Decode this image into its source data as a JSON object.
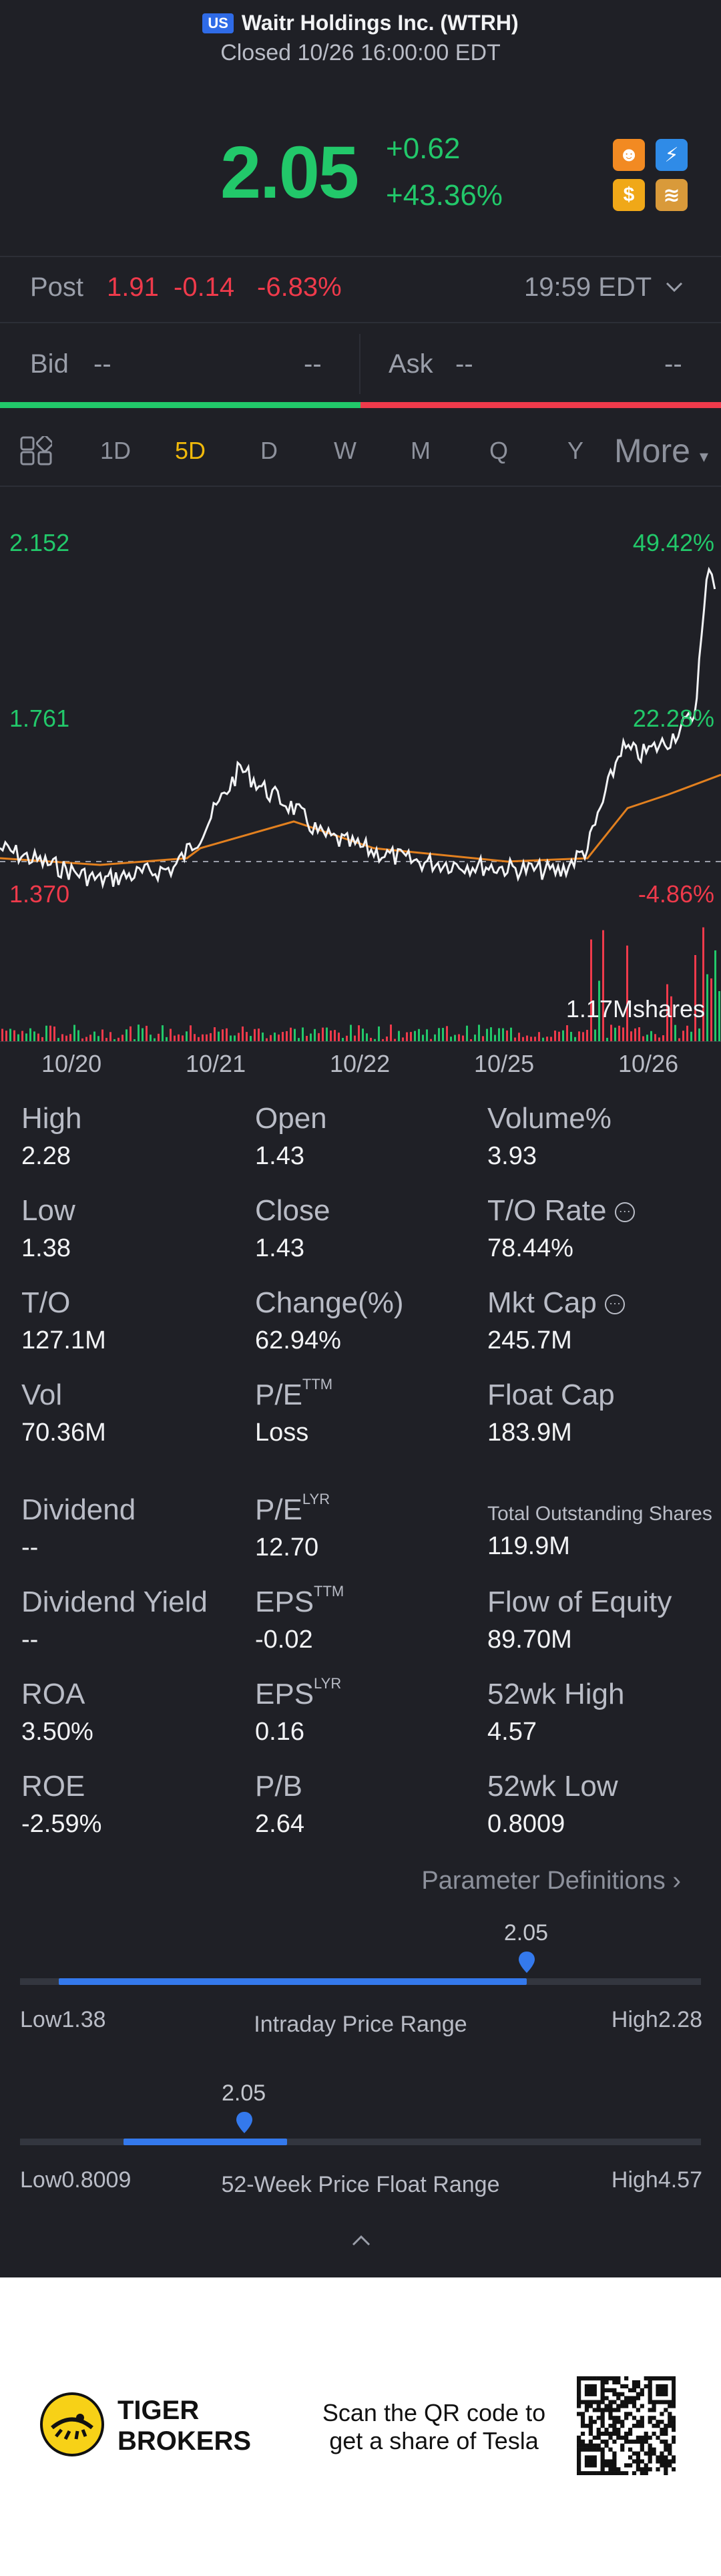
{
  "header": {
    "market_badge": "US",
    "title": "Waitr Holdings Inc. (WTRH)",
    "status": "Closed 10/26 16:00:00 EDT"
  },
  "quote": {
    "price": "2.05",
    "change": "+0.62",
    "change_pct": "+43.36%"
  },
  "post_market": {
    "label": "Post",
    "price": "1.91",
    "change": "-0.14",
    "change_pct": "-6.83%",
    "time": "19:59 EDT"
  },
  "bid": {
    "label": "Bid",
    "price": "--",
    "size": "--"
  },
  "ask": {
    "label": "Ask",
    "price": "--",
    "size": "--"
  },
  "tabs": [
    "1D",
    "5D",
    "D",
    "W",
    "M",
    "Q",
    "Y"
  ],
  "active_tab": "5D",
  "more_label": "More",
  "chart": {
    "y_left": [
      "2.152",
      "1.761",
      "1.370"
    ],
    "y_right": [
      "49.42%",
      "22.28%",
      "-4.86%"
    ],
    "volume_label": "1.17Mshares",
    "dates": [
      "10/20",
      "10/21",
      "10/22",
      "10/25",
      "10/26"
    ]
  },
  "stats": {
    "high": {
      "label": "High",
      "value": "2.28"
    },
    "open": {
      "label": "Open",
      "value": "1.43"
    },
    "volume_pct": {
      "label": "Volume%",
      "value": "3.93"
    },
    "low": {
      "label": "Low",
      "value": "1.38"
    },
    "close": {
      "label": "Close",
      "value": "1.43"
    },
    "to_rate": {
      "label": "T/O Rate",
      "value": "78.44%"
    },
    "to": {
      "label": "T/O",
      "value": "127.1M"
    },
    "change": {
      "label": "Change(%)",
      "value": "62.94%"
    },
    "mkt_cap": {
      "label": "Mkt Cap",
      "value": "245.7M"
    },
    "vol": {
      "label": "Vol",
      "value": "70.36M"
    },
    "pe_ttm": {
      "label": "P/E",
      "sup": "TTM",
      "value": "Loss"
    },
    "float_cap": {
      "label": "Float Cap",
      "value": "183.9M"
    },
    "dividend": {
      "label": "Dividend",
      "value": "--"
    },
    "pe_lyr": {
      "label": "P/E",
      "sup": "LYR",
      "value": "12.70"
    },
    "total_shares": {
      "label": "Total Outstanding Shares",
      "value": "119.9M"
    },
    "div_yield": {
      "label": "Dividend Yield",
      "value": "--"
    },
    "eps_ttm": {
      "label": "EPS",
      "sup": "TTM",
      "value": "-0.02"
    },
    "flow_equity": {
      "label": "Flow of Equity",
      "value": "89.70M"
    },
    "roa": {
      "label": "ROA",
      "value": "3.50%"
    },
    "eps_lyr": {
      "label": "EPS",
      "sup": "LYR",
      "value": "0.16"
    },
    "wk52_high": {
      "label": "52wk High",
      "value": "4.57"
    },
    "roe": {
      "label": "ROE",
      "value": "-2.59%"
    },
    "pb": {
      "label": "P/B",
      "value": "2.64"
    },
    "wk52_low": {
      "label": "52wk Low",
      "value": "0.8009"
    }
  },
  "param_link": "Parameter Definitions",
  "intraday_range": {
    "title": "Intraday Price Range",
    "low_label": "Low1.38",
    "high_label": "High2.28",
    "current": "2.05",
    "position": 0.744
  },
  "week52_range": {
    "title": "52-Week Price Float Range",
    "low_label": "Low0.8009",
    "high_label": "High4.57",
    "current": "2.05",
    "position": 0.326
  },
  "footer": {
    "brand_line1": "TIGER",
    "brand_line2": "BROKERS",
    "qr_text_1": "Scan the QR code to",
    "qr_text_2": "get a share of Tesla"
  },
  "colors": {
    "up": "#22c86a",
    "down": "#ef3a4b",
    "accent": "#f0b90b",
    "range": "#3479ec"
  }
}
